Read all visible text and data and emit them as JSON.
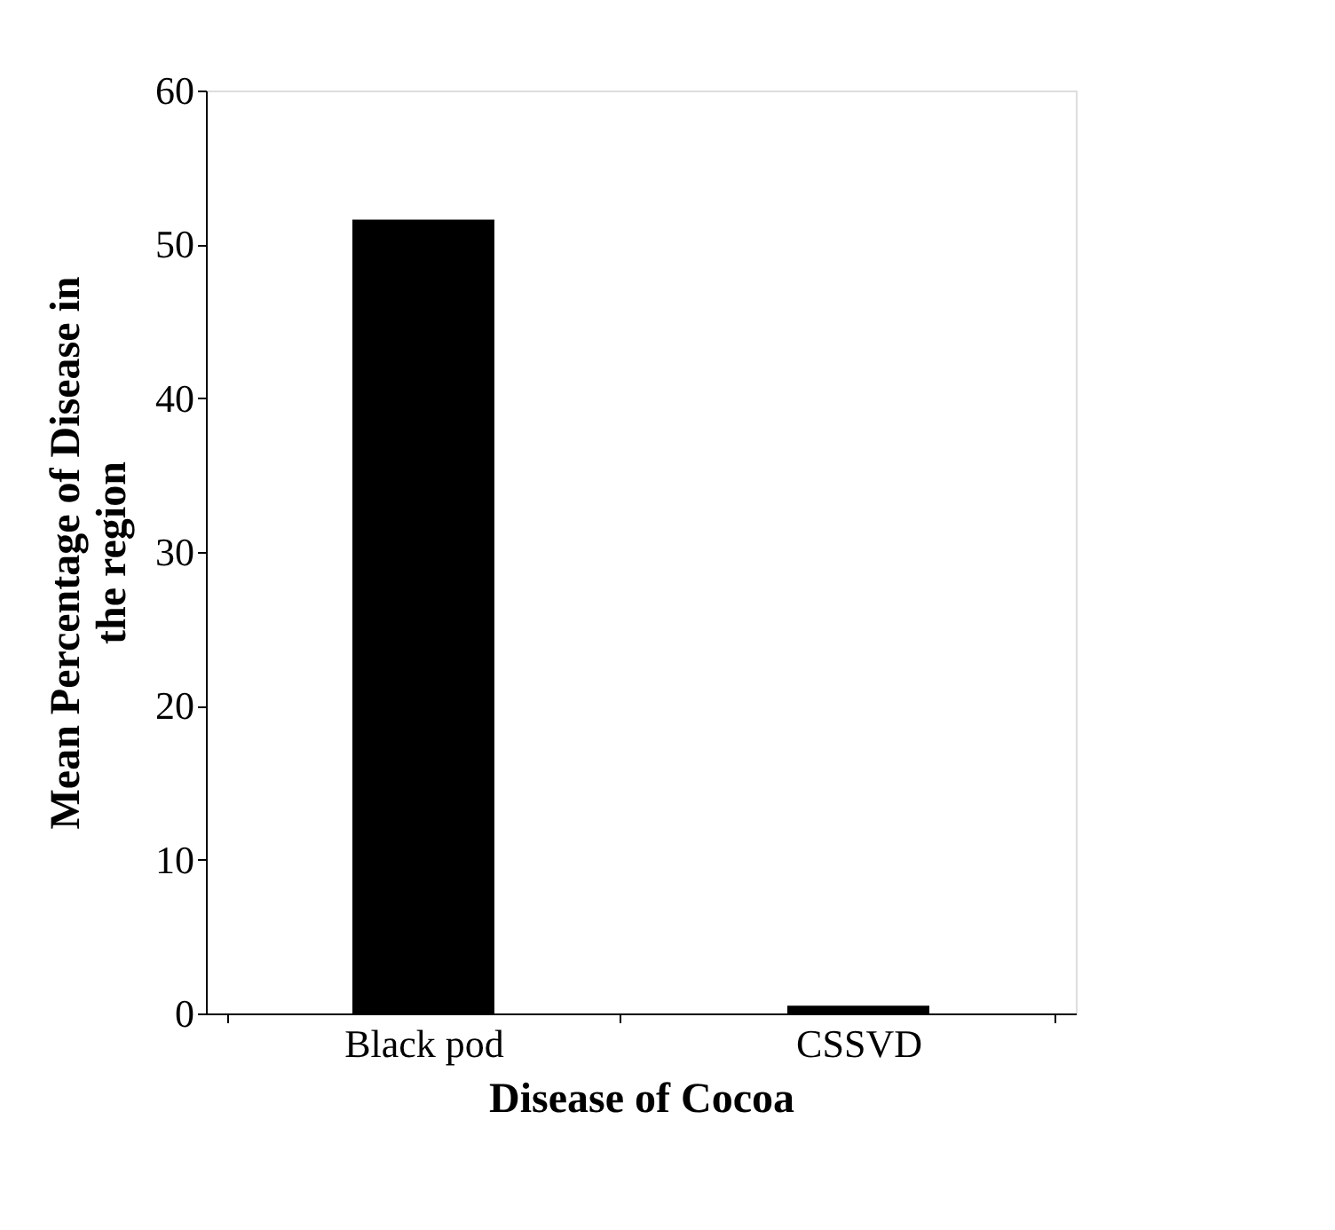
{
  "chart_data": {
    "type": "bar",
    "xlabel": "Disease of Cocoa",
    "ylabel": "Mean Percentage of Disease in the region",
    "categories": [
      "Black pod",
      "CSSVD"
    ],
    "values": [
      51.6,
      0.5
    ],
    "color": "#000000",
    "ylim": [
      0,
      60
    ],
    "yticks": [
      0,
      10,
      20,
      30,
      40,
      50,
      60
    ],
    "grid": false
  }
}
